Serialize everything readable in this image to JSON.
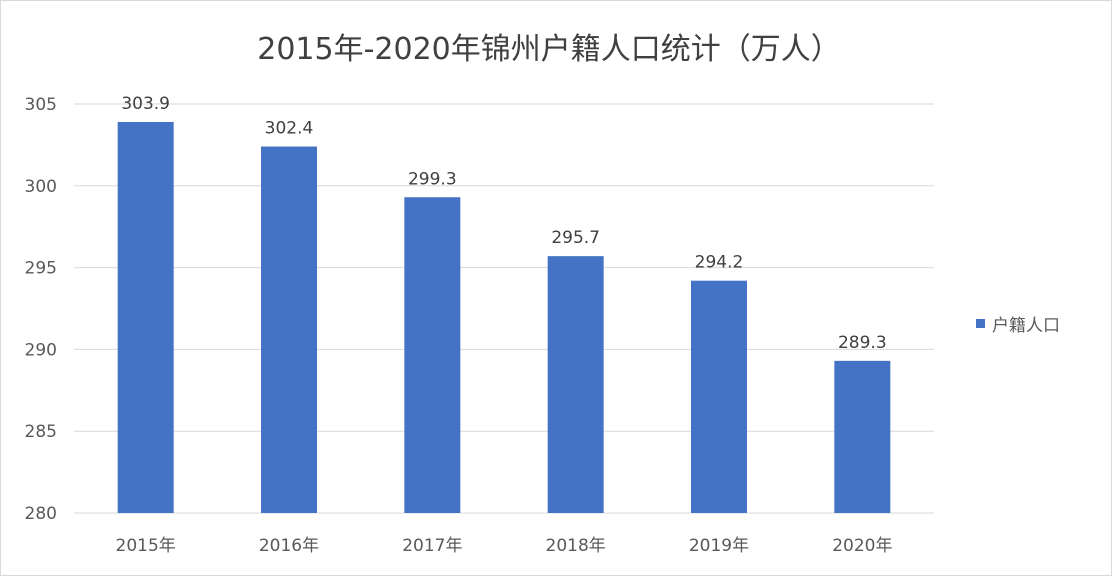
{
  "chart_data": {
    "type": "bar",
    "title": "2015年-2020年锦州户籍人口统计（万人）",
    "categories": [
      "2015年",
      "2016年",
      "2017年",
      "2018年",
      "2019年",
      "2020年"
    ],
    "series": [
      {
        "name": "户籍人口",
        "values": [
          303.9,
          302.4,
          299.3,
          295.7,
          294.2,
          289.3
        ]
      }
    ],
    "data_labels": [
      "303.9",
      "302.4",
      "299.3",
      "295.7",
      "294.2",
      "289.3"
    ],
    "ylim": [
      280,
      305
    ],
    "yticks": [
      280,
      285,
      290,
      295,
      300,
      305
    ],
    "grid": true,
    "legend_position": "right",
    "bar_color": "#4472c4",
    "grid_color": "#d9d9d9"
  }
}
